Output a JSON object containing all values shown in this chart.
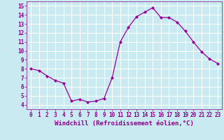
{
  "x": [
    0,
    1,
    2,
    3,
    4,
    5,
    6,
    7,
    8,
    9,
    10,
    11,
    12,
    13,
    14,
    15,
    16,
    17,
    18,
    19,
    20,
    21,
    22,
    23
  ],
  "y": [
    8.0,
    7.8,
    7.2,
    6.7,
    6.4,
    4.4,
    4.6,
    4.3,
    4.4,
    4.7,
    7.0,
    11.0,
    12.6,
    13.8,
    14.3,
    14.8,
    13.7,
    13.7,
    13.2,
    12.2,
    11.0,
    9.9,
    9.1,
    8.6
  ],
  "line_color": "#990099",
  "marker": "D",
  "marker_size": 2,
  "bg_color": "#c8eaf0",
  "grid_color": "#ffffff",
  "xlabel": "Windchill (Refroidissement éolien,°C)",
  "xlabel_color": "#880088",
  "xlabel_fontsize": 6.5,
  "tick_color": "#880088",
  "tick_fontsize": 5.5,
  "ylim": [
    3.5,
    15.5
  ],
  "xlim": [
    -0.5,
    23.5
  ],
  "yticks": [
    4,
    5,
    6,
    7,
    8,
    9,
    10,
    11,
    12,
    13,
    14,
    15
  ],
  "xticks": [
    0,
    1,
    2,
    3,
    4,
    5,
    6,
    7,
    8,
    9,
    10,
    11,
    12,
    13,
    14,
    15,
    16,
    17,
    18,
    19,
    20,
    21,
    22,
    23
  ]
}
